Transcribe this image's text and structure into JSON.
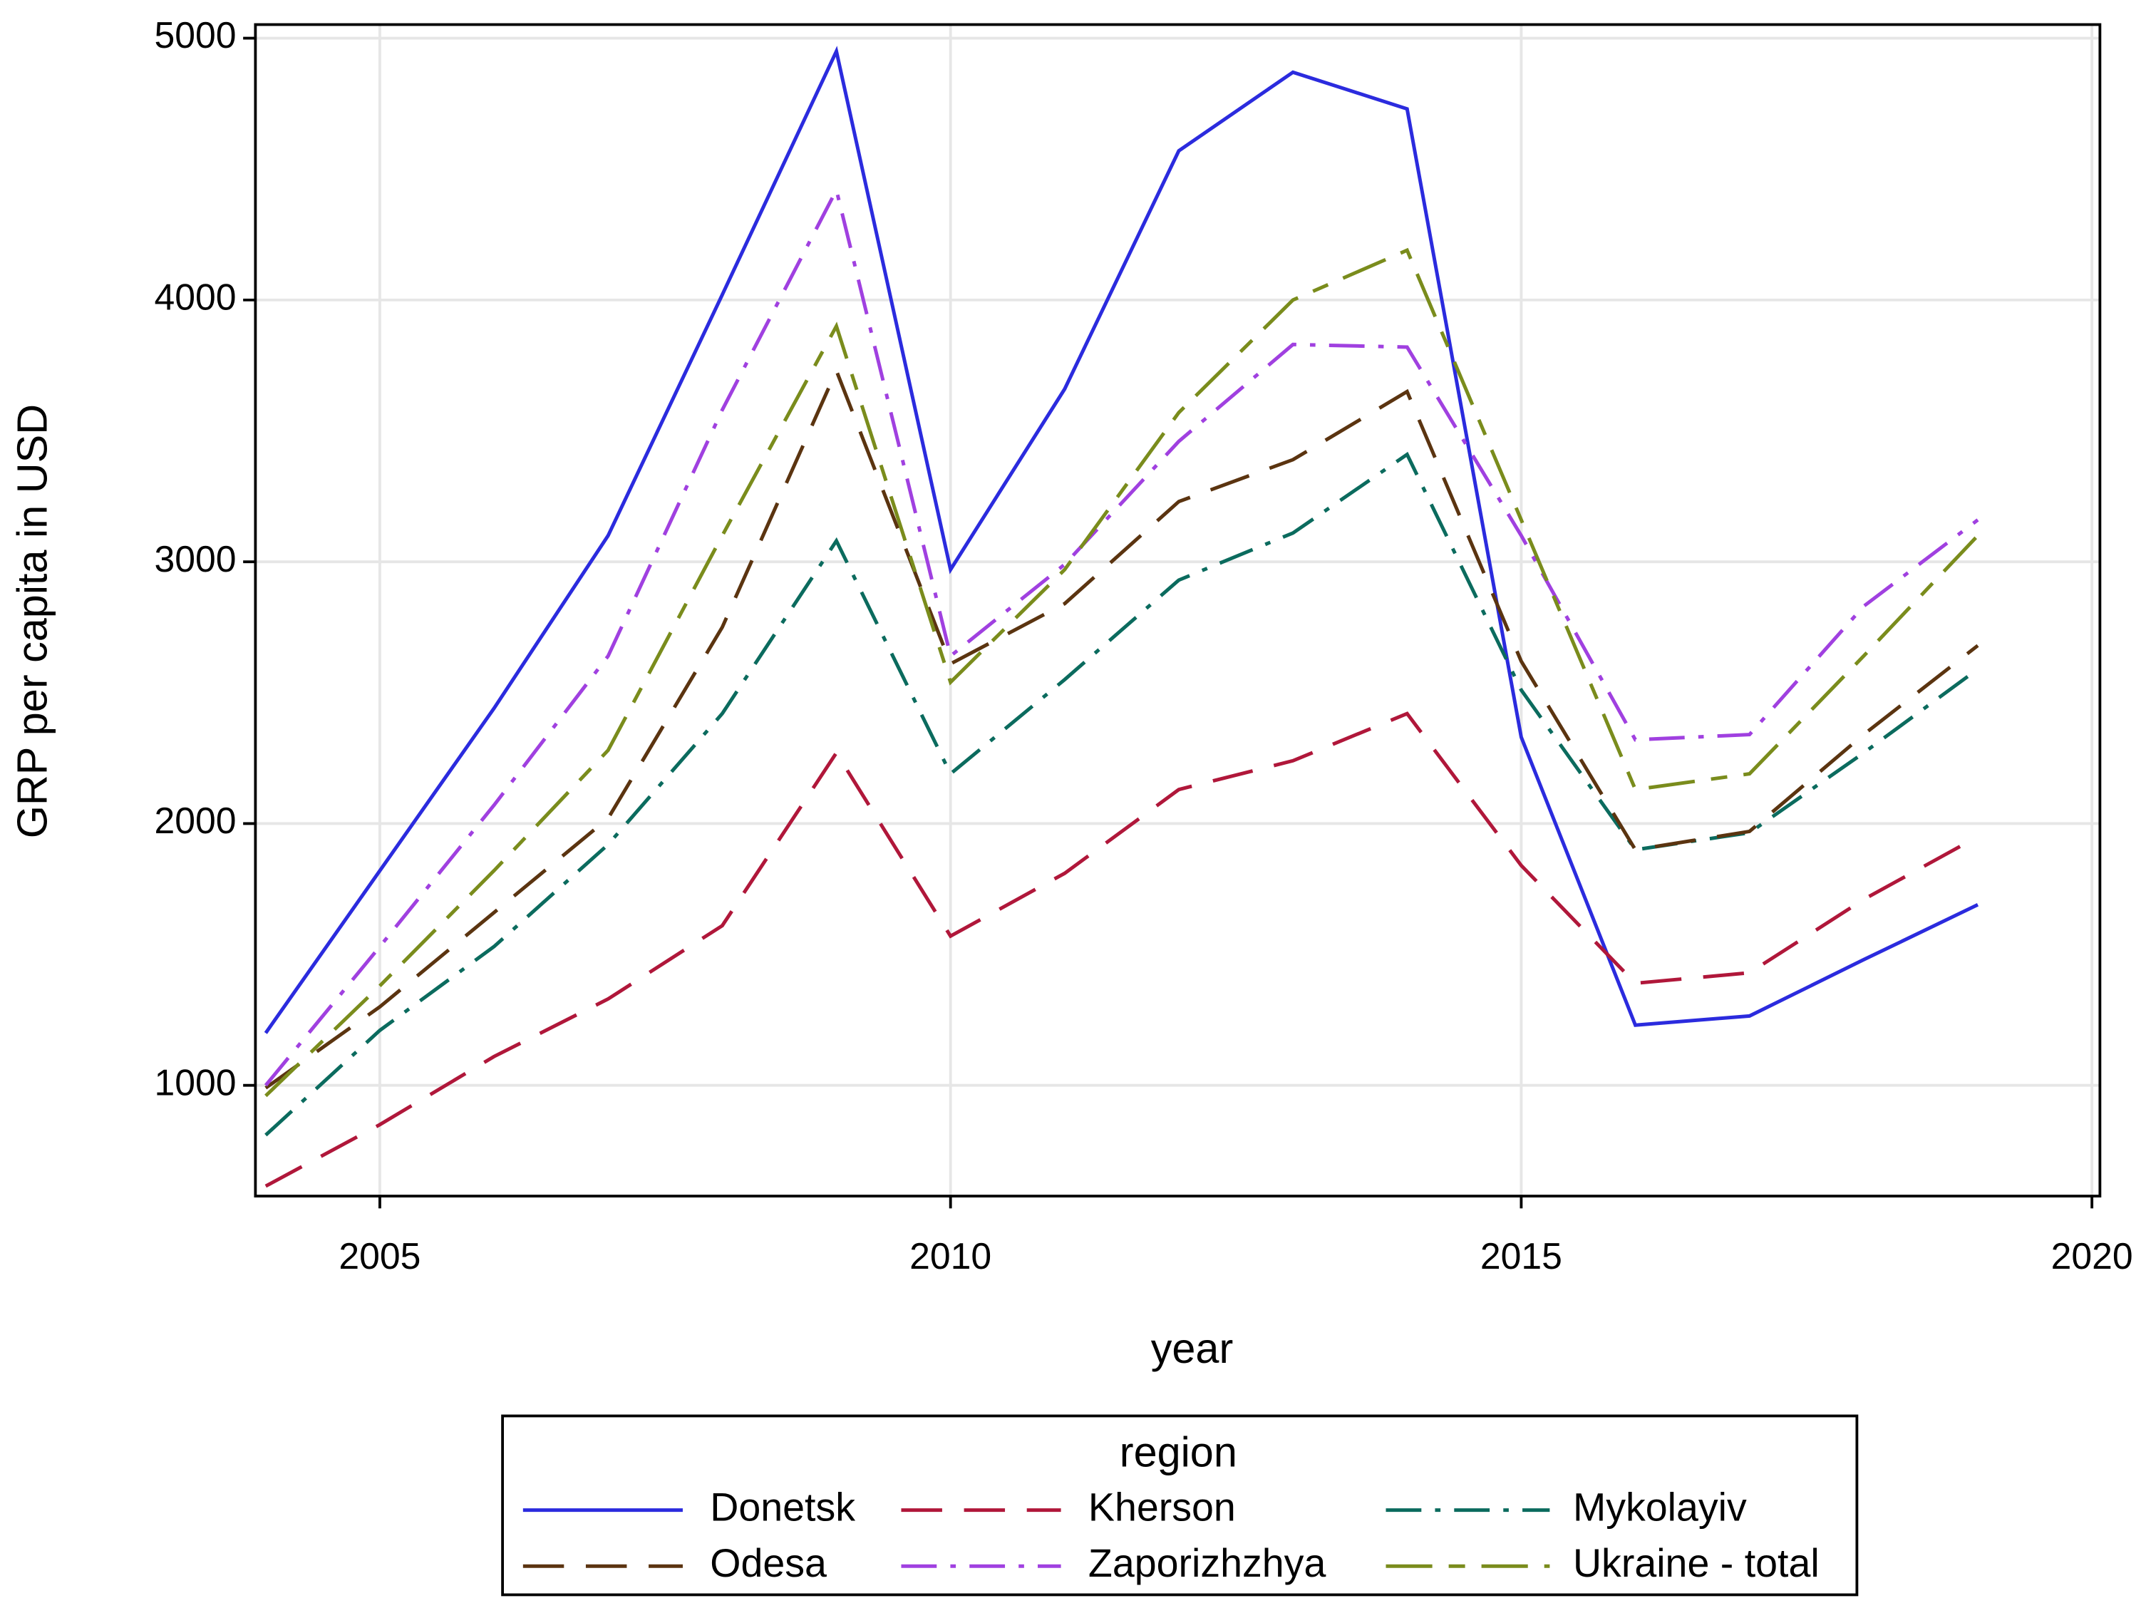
{
  "chart_data": {
    "type": "line",
    "x_label": "year",
    "y_label": "GRP per capita in USD",
    "x": [
      2004,
      2005,
      2006,
      2007,
      2008,
      2009,
      2010,
      2011,
      2012,
      2013,
      2014,
      2015,
      2016,
      2017,
      2018,
      2019
    ],
    "series": [
      {
        "name": "Donetsk",
        "color": "#2b2bde",
        "dash": "solid",
        "values": [
          1200,
          1820,
          2440,
          3100,
          4020,
          4950,
          2970,
          3660,
          4570,
          4870,
          4730,
          2330,
          1230,
          1265,
          1480,
          1690
        ]
      },
      {
        "name": "Kherson",
        "color": "#b0173a",
        "dash": "long-dash",
        "values": [
          615,
          850,
          1110,
          1330,
          1610,
          2270,
          1570,
          1810,
          2130,
          2240,
          2420,
          1840,
          1390,
          1430,
          1710,
          1950
        ]
      },
      {
        "name": "Mykolayiv",
        "color": "#0b6b5e",
        "dash": "dash-dot",
        "values": [
          810,
          1210,
          1530,
          1920,
          2420,
          3080,
          2190,
          2550,
          2930,
          3110,
          3410,
          2510,
          1900,
          1965,
          2270,
          2590
        ]
      },
      {
        "name": "Odesa",
        "color": "#5b3410",
        "dash": "long-dash",
        "values": [
          990,
          1300,
          1660,
          2020,
          2750,
          3730,
          2610,
          2840,
          3230,
          3390,
          3650,
          2620,
          1900,
          1970,
          2340,
          2680
        ]
      },
      {
        "name": "Zaporizhzhya",
        "color": "#a040e0",
        "dash": "dash-dot",
        "values": [
          1000,
          1530,
          2070,
          2640,
          3580,
          4420,
          2640,
          2990,
          3460,
          3830,
          3820,
          3100,
          2320,
          2340,
          2830,
          3160
        ]
      },
      {
        "name": "Ukraine - total",
        "color": "#7a8c1c",
        "dash": "long-short",
        "values": [
          960,
          1380,
          1820,
          2280,
          3100,
          3900,
          2540,
          2970,
          3570,
          4000,
          4190,
          3160,
          2130,
          2190,
          2640,
          3100
        ]
      }
    ],
    "xlim": [
      2003.91,
      2020.07
    ],
    "xticks": [
      2005,
      2010,
      2015,
      2020
    ],
    "ylim": [
      577,
      5052
    ],
    "yticks": [
      1000,
      2000,
      3000,
      4000,
      5000
    ],
    "grid": true,
    "legend": {
      "title": "region",
      "position": "bottom"
    }
  }
}
